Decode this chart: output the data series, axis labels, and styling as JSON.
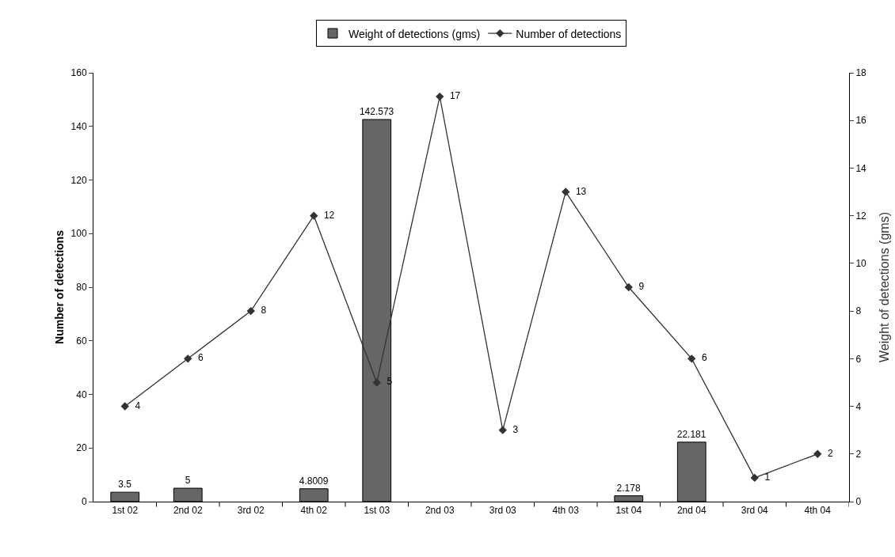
{
  "chart_data": {
    "type": "bar",
    "categories": [
      "1st 02",
      "2nd 02",
      "3rd 02",
      "4th 02",
      "1st 03",
      "2nd 03",
      "3rd 03",
      "4th 03",
      "1st 04",
      "2nd 04",
      "3rd 04",
      "4th 04"
    ],
    "series": [
      {
        "name": "Weight of detections (gms)",
        "color": "#666666",
        "values": [
          3.5,
          5,
          null,
          4.8009,
          142.573,
          null,
          null,
          null,
          2.178,
          22.181,
          null,
          null
        ]
      },
      {
        "name": "Number of detections",
        "type": "line",
        "axis": "y2",
        "color": "#333333",
        "marker": "diamond",
        "values": [
          4,
          6,
          8,
          12,
          5,
          17,
          3,
          13,
          9,
          6,
          1,
          2
        ]
      }
    ],
    "ylabel": "Number of detections",
    "y2label": "Weight of detections (gms)",
    "ylim": [
      0,
      160
    ],
    "yticks": [
      0,
      20,
      40,
      60,
      80,
      100,
      120,
      140,
      160
    ],
    "y2lim": [
      0,
      18
    ],
    "y2ticks": [
      0,
      2,
      4,
      6,
      8,
      10,
      12,
      14,
      16,
      18
    ],
    "data_labels": true,
    "grid": false,
    "legend": "top"
  }
}
